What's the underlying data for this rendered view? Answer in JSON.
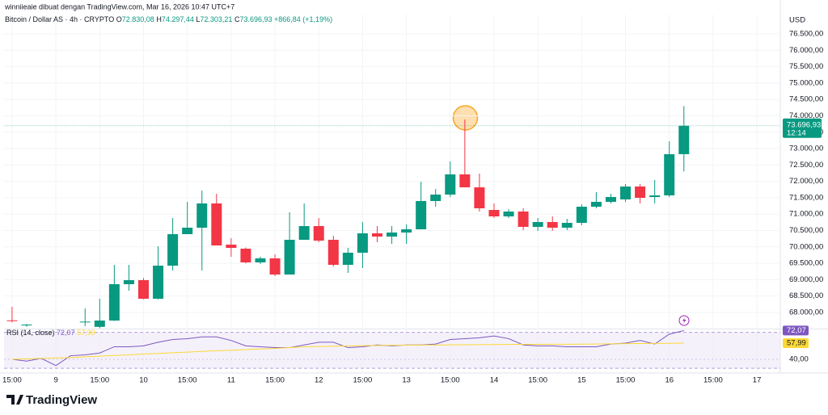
{
  "attribution": "winniieaie dibuat dengan TradingView.com, Mar 16, 2026 10:47 UTC+7",
  "brand": "TradingView",
  "chart_data": [
    {
      "type": "candlestick",
      "title": "Bitcoin / Dollar AS · 4h · CRYPTO",
      "ohlc_legend": [
        {
          "key": "O",
          "value": "72.830,08"
        },
        {
          "key": "H",
          "value": "74.297,44"
        },
        {
          "key": "L",
          "value": "72.303,21"
        },
        {
          "key": "C",
          "value": "73.696,93"
        }
      ],
      "change": "+866,84 (+1,19%)",
      "currency": "USD",
      "last_label": "73.696,93",
      "countdown": "12:14",
      "up_color": "#089981",
      "down_color": "#f23645",
      "open": [
        67760,
        67620,
        null,
        null,
        null,
        67700,
        67560,
        67753,
        68862,
        68985,
        68418,
        69428,
        70389,
        70586,
        71326,
        70069,
        69946,
        69527,
        69650,
        69157,
        70217,
        70636,
        70217,
        69453,
        69823,
        70414,
        70315,
        70439,
        70537,
        71400,
        71597,
        72213,
        71818,
        71128,
        70931,
        71079,
        70611,
        70759,
        70586,
        70734,
        71227,
        71375,
        71449,
        71843,
        71523,
        71572,
        72830.08
      ],
      "high": [
        68172,
        67650,
        null,
        null,
        null,
        68122,
        68418,
        69453,
        69453,
        69050,
        70020,
        70882,
        71375,
        71720,
        71621,
        70266,
        69980,
        69700,
        69773,
        71055,
        71326,
        70882,
        70340,
        69970,
        70759,
        70636,
        70636,
        70685,
        71991,
        71769,
        72607,
        73888,
        72237,
        71326,
        71150,
        71178,
        70882,
        70931,
        70857,
        71301,
        71671,
        71621,
        71917,
        71917,
        72040,
        73223,
        74297.44
      ],
      "low": [
        67700,
        67560,
        null,
        null,
        null,
        67580,
        67520,
        67740,
        68664,
        68400,
        68400,
        69280,
        70389,
        69280,
        70044,
        69699,
        69500,
        69480,
        69108,
        69157,
        70217,
        70143,
        69404,
        69207,
        69354,
        70143,
        70094,
        70094,
        70537,
        71227,
        71523,
        71818,
        71079,
        70882,
        70880,
        70512,
        70488,
        70488,
        70512,
        70660,
        71178,
        71326,
        71375,
        71326,
        71326,
        71523,
        72303.21
      ],
      "close": [
        67740,
        67630,
        null,
        null,
        null,
        67720,
        67753,
        68862,
        68985,
        68418,
        69428,
        70389,
        70586,
        71326,
        70044,
        69970,
        69527,
        69650,
        69157,
        70217,
        70636,
        70192,
        69453,
        69823,
        70414,
        70315,
        70439,
        70537,
        71400,
        71597,
        72213,
        71818,
        71178,
        70931,
        71079,
        70611,
        70759,
        70586,
        70734,
        71227,
        71375,
        71523,
        71843,
        71498,
        71572,
        72829,
        73696.93
      ],
      "ylim": [
        67556,
        77091
      ],
      "yticks": [
        {
          "value": 68000,
          "label": "68.000,00"
        },
        {
          "value": 68500,
          "label": "68.500,00"
        },
        {
          "value": 69000,
          "label": "69.000,00"
        },
        {
          "value": 69500,
          "label": "69.500,00"
        },
        {
          "value": 70000,
          "label": "70.000,00"
        },
        {
          "value": 70500,
          "label": "70.500,00"
        },
        {
          "value": 71000,
          "label": "71.000,00"
        },
        {
          "value": 71500,
          "label": "71.500,00"
        },
        {
          "value": 72000,
          "label": "72.000,00"
        },
        {
          "value": 72500,
          "label": "72.500,00"
        },
        {
          "value": 73000,
          "label": "73.000,00"
        },
        {
          "value": 73500,
          "label": "73.500,00"
        },
        {
          "value": 74000,
          "label": "74.000,00"
        },
        {
          "value": 74500,
          "label": "74.500,00"
        },
        {
          "value": 75000,
          "label": "75.000,00"
        },
        {
          "value": 75500,
          "label": "75.500,00"
        },
        {
          "value": 76000,
          "label": "76.000,00"
        },
        {
          "value": 76500,
          "label": "76.500,00"
        }
      ],
      "xlim": [
        -0.55,
        52.6
      ],
      "xticks": [
        {
          "value": 0,
          "label": "15:00"
        },
        {
          "value": 3,
          "label": "9"
        },
        {
          "value": 6,
          "label": "15:00"
        },
        {
          "value": 9,
          "label": "10"
        },
        {
          "value": 12,
          "label": "15:00"
        },
        {
          "value": 15,
          "label": "11"
        },
        {
          "value": 18,
          "label": "15:00"
        },
        {
          "value": 21,
          "label": "12"
        },
        {
          "value": 24,
          "label": "15:00"
        },
        {
          "value": 27,
          "label": "13"
        },
        {
          "value": 30,
          "label": "15:00"
        },
        {
          "value": 33,
          "label": "14"
        },
        {
          "value": 36,
          "label": "15:00"
        },
        {
          "value": 39,
          "label": "15"
        },
        {
          "value": 42,
          "label": "15:00"
        },
        {
          "value": 45,
          "label": "16"
        },
        {
          "value": 48,
          "label": "15:00"
        },
        {
          "value": 51,
          "label": "17"
        }
      ],
      "grid": true
    },
    {
      "type": "line",
      "band": [
        30,
        70
      ],
      "band_color": "#ede7f6",
      "series": [
        {
          "name": "RSI (14, close)",
          "color": "#7e57c2",
          "last_label": "72,07",
          "values": [
            40,
            38,
            41,
            33,
            44,
            45,
            47,
            54,
            54,
            55,
            59,
            62,
            63,
            65,
            65,
            61,
            55,
            54,
            53,
            53,
            56,
            59,
            59,
            53,
            54,
            56,
            55,
            56,
            56,
            57,
            62,
            63,
            64,
            66,
            63,
            56,
            55,
            55,
            54,
            54,
            54,
            57,
            58,
            61,
            57,
            68,
            72.07
          ]
        },
        {
          "color": "#fdd835",
          "last_label": "57,99",
          "values": [
            40,
            40.5,
            41,
            41.5,
            42,
            42.8,
            43.5,
            44.3,
            45,
            45.8,
            46.5,
            47.3,
            48,
            48.8,
            49.5,
            50,
            50.8,
            51.5,
            52.2,
            53,
            54,
            54.3,
            54.6,
            54.9,
            55.2,
            55.4,
            55.6,
            55.8,
            55.9,
            56,
            56.1,
            56.2,
            56.3,
            56.4,
            56.5,
            56.6,
            56.7,
            56.8,
            56.8,
            56.9,
            57,
            57.2,
            57.4,
            57.5,
            57.7,
            57.8,
            57.99
          ]
        }
      ],
      "ylim": [
        28.3,
        73.3
      ],
      "yticks": [
        {
          "value": 40,
          "label": "40,00"
        }
      ]
    }
  ]
}
